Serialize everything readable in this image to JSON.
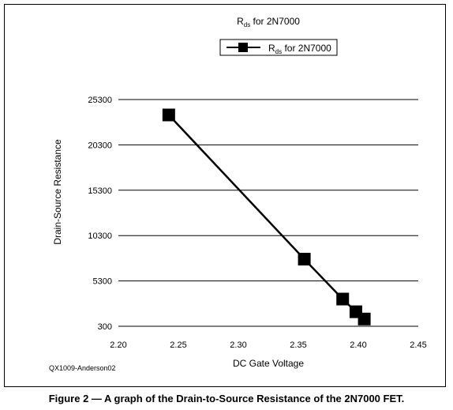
{
  "chart_data": {
    "type": "line",
    "title_main": "R",
    "title_sub": "ds",
    "title_rest": " for 2N7000",
    "legend": {
      "label_main": "R",
      "label_sub": "ds",
      "label_rest": " for 2N7000",
      "position": "top-center"
    },
    "xlabel": "DC Gate Voltage",
    "ylabel": "Drain-Source Resistance",
    "xlim": [
      2.2,
      2.45
    ],
    "ylim": [
      300,
      25300
    ],
    "x_ticks": [
      "2.20",
      "2.25",
      "2.30",
      "2.35",
      "2.40",
      "2.45"
    ],
    "y_ticks": [
      "25300",
      "20300",
      "15300",
      "10300",
      "5300",
      "300"
    ],
    "grid": "horizontal",
    "series": [
      {
        "name": "Rds for 2N7000",
        "color": "#000000",
        "marker": "square",
        "points": [
          {
            "x": 2.242,
            "y": 23600
          },
          {
            "x": 2.355,
            "y": 7700
          },
          {
            "x": 2.387,
            "y": 3300
          },
          {
            "x": 2.398,
            "y": 1900
          },
          {
            "x": 2.405,
            "y": 1100
          }
        ]
      }
    ]
  },
  "figure_id": "QX1009-Anderson02",
  "caption": "Figure 2 — A graph of the Drain-to-Source Resistance of the 2N7000 FET."
}
